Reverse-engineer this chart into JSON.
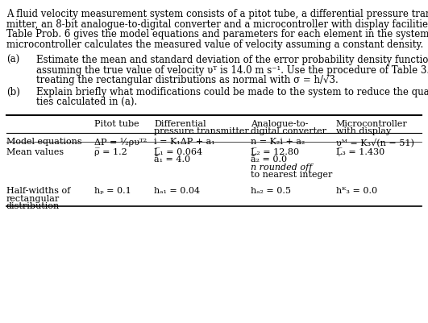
{
  "background_color": "#ffffff",
  "intro_lines": [
    "A fluid velocity measurement system consists of a pitot tube, a differential pressure trans-",
    "mitter, an 8-bit analogue-to-digital converter and a microcontroller with display facilities.",
    "Table Prob. 6 gives the model equations and parameters for each element in the system. The",
    "microcontroller calculates the measured value of velocity assuming a constant density."
  ],
  "part_a_label": "(a)",
  "part_a_lines": [
    "Estimate the mean and standard deviation of the error probability density function",
    "assuming the true value of velocity υᵀ is 14.0 m s⁻¹. Use the procedure of Table 3.1,",
    "treating the rectangular distributions as normal with σ = h/√3."
  ],
  "part_b_label": "(b)",
  "part_b_lines": [
    "Explain briefly what modifications could be made to the system to reduce the quanti-",
    "ties calculated in (a)."
  ],
  "col_headers_line1": [
    "Pitot tube",
    "Differential",
    "Analogue-to-",
    "Microcontroller"
  ],
  "col_headers_line2": [
    "",
    "pressure transmitter",
    "digital converter",
    "with display"
  ],
  "row1_label": "Model equations",
  "row1_col1": "ΔP = ½ρυᵀ²",
  "row1_col2": "i = K₁ΔP + a₁",
  "row1_col3": "n = K₂i + a₂",
  "row1_col4": "υᴹ = K₃√(n − 51)",
  "row2_label": "Mean values",
  "row2_col1": "ρ̅ = 1.2",
  "row2_col2a": "Ḷ̅₁ = 0.064",
  "row2_col2b": "ā̅₁ = 4.0",
  "row2_col3a": "Ḷ̅₂ = 12.80",
  "row2_col3b": "ā̅₂ = 0.0",
  "row2_col3c": "n rounded off",
  "row2_col3d": "to nearest integer",
  "row2_col4": "Ḷ̅₃ = 1.430",
  "row3_label1": "Half-widths of",
  "row3_label2": "rectangular",
  "row3_label3": "distribution",
  "row3_col1": "hₚ = 0.1",
  "row3_col2": "hₐ₁ = 0.04",
  "row3_col3": "hₐ₂ = 0.5",
  "row3_col4": "hᴷ₃ = 0.0",
  "fs_body": 8.5,
  "fs_table": 8.0
}
